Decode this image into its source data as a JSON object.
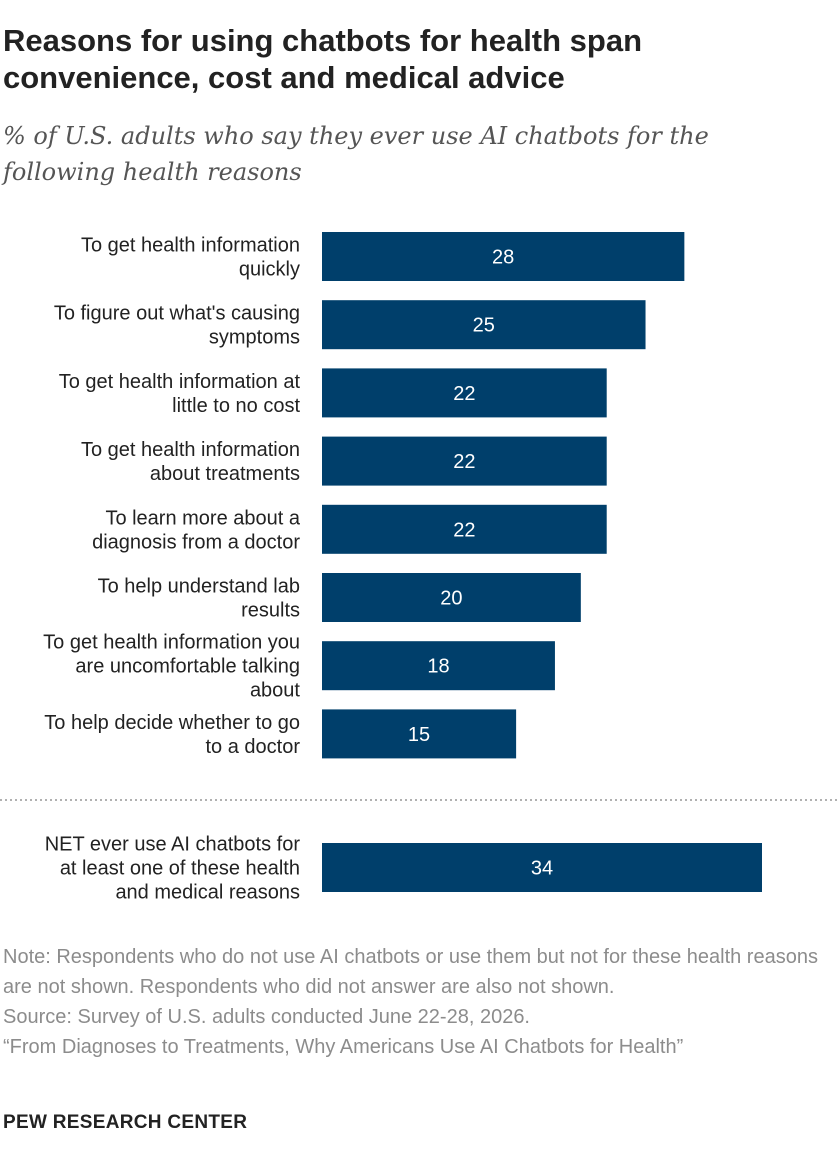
{
  "title": "Reasons for using chatbots for health span convenience, cost and medical advice",
  "subtitle": "% of U.S. adults who say they ever use AI chatbots for the following health reasons",
  "chart_data": {
    "type": "bar",
    "orientation": "horizontal",
    "categories": [
      [
        "To get health information",
        "quickly"
      ],
      [
        "To figure out what's causing",
        "symptoms"
      ],
      [
        "To get health information at",
        "little to no cost"
      ],
      [
        "To get health information",
        "about treatments"
      ],
      [
        "To learn more about a",
        "diagnosis from a doctor"
      ],
      [
        "To help understand lab",
        "results"
      ],
      [
        "To get health information you",
        "are uncomfortable talking",
        "about"
      ],
      [
        "To help decide whether to go",
        "to a doctor"
      ]
    ],
    "values": [
      28,
      25,
      22,
      22,
      22,
      20,
      18,
      15
    ],
    "net": {
      "label": [
        "NET ever use AI chatbots for",
        "at least one of these health",
        "and medical reasons"
      ],
      "value": 34
    },
    "bar_color": "#003f6b",
    "value_label_color": "#ffffff",
    "xlim": [
      0,
      34
    ]
  },
  "notes": {
    "note": "Note: Respondents who do not use AI chatbots or use them but not for these health reasons are not shown. Respondents who did not answer are also not shown.",
    "source": "Source: Survey of U.S. adults conducted June 22-28, 2026.",
    "report": "“From Diagnoses to Treatments, Why Americans Use AI Chatbots for Health”"
  },
  "brand": "PEW RESEARCH CENTER"
}
